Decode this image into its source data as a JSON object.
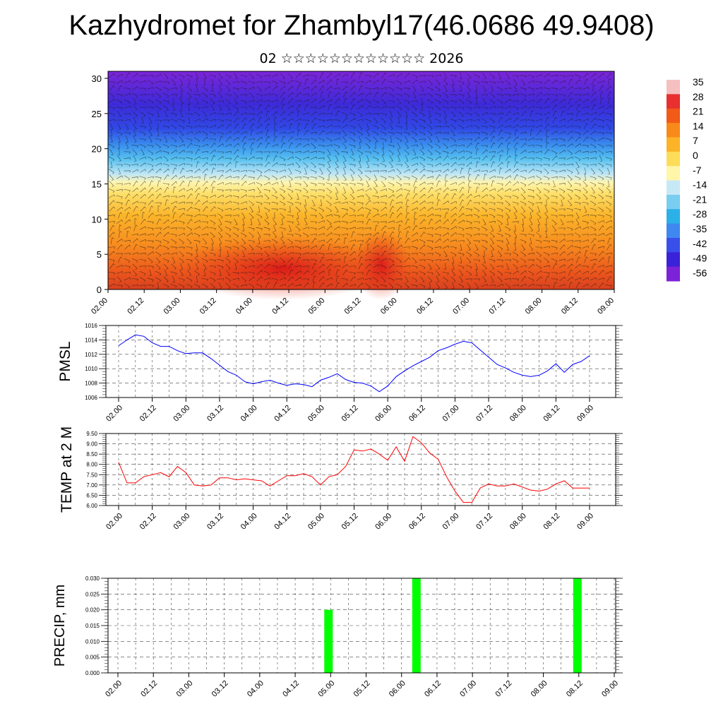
{
  "header": {
    "title": "Kazhydromet for Zhambyl17(46.0686 49.9408)",
    "subtitle": "02 ☆☆☆☆☆☆☆☆☆☆☆☆ 2026"
  },
  "chart_data": [
    {
      "name": "cross-section",
      "type": "heatmap",
      "title": "",
      "x_tick_labels": [
        "02.00",
        "02.12",
        "03.00",
        "03.12",
        "04.00",
        "04.12",
        "05.00",
        "05.12",
        "06.00",
        "06.12",
        "07.00",
        "07.12",
        "08.00",
        "08.12",
        "09.00"
      ],
      "y_ticks": [
        0,
        5,
        10,
        15,
        20,
        25,
        30
      ],
      "ylim": [
        0,
        31
      ],
      "colorbar_labels": [
        "35",
        "28",
        "21",
        "14",
        "7",
        "0",
        "-7",
        "-14",
        "-21",
        "-28",
        "-35",
        "-42",
        "-49",
        "-56"
      ],
      "colorbar_colors": [
        "#f6c0c0",
        "#e83030",
        "#f25a18",
        "#f88a1a",
        "#fcb328",
        "#fddc5a",
        "#fff6a8",
        "#c7e9f6",
        "#79cdf0",
        "#2bb0e8",
        "#3f88f0",
        "#3a4fea",
        "#3a22d8",
        "#7c22d8"
      ]
    },
    {
      "name": "pmsl",
      "type": "line",
      "ylabel": "PMSL",
      "color": "#0000ff",
      "ylim": [
        1006,
        1016
      ],
      "y_ticks": [
        "1006",
        "1008",
        "1010",
        "1012",
        "1014",
        "1016"
      ],
      "x_tick_labels": [
        "02.00",
        "02.12",
        "03.00",
        "03.12",
        "04.00",
        "04.12",
        "05.00",
        "05.12",
        "06.00",
        "06.12",
        "07.00",
        "07.12",
        "08.00",
        "08.12",
        "09.00"
      ],
      "values": [
        1013.2,
        1014.0,
        1014.7,
        1014.5,
        1013.6,
        1013.1,
        1013.1,
        1012.5,
        1012.1,
        1012.2,
        1012.2,
        1011.4,
        1010.5,
        1009.6,
        1009.1,
        1008.2,
        1007.9,
        1008.2,
        1008.4,
        1008.0,
        1007.7,
        1007.9,
        1007.8,
        1007.5,
        1008.4,
        1008.8,
        1009.3,
        1008.5,
        1008.1,
        1008.0,
        1007.6,
        1006.8,
        1007.6,
        1008.9,
        1009.7,
        1010.4,
        1011.0,
        1011.6,
        1012.5,
        1012.9,
        1013.4,
        1013.8,
        1013.6,
        1012.6,
        1011.6,
        1010.6,
        1010.1,
        1009.5,
        1009.1,
        1008.9,
        1009.1,
        1009.7,
        1010.7,
        1009.5,
        1010.6,
        1011.0,
        1011.8
      ]
    },
    {
      "name": "temp2m",
      "type": "line",
      "ylabel": "TEMP at 2 M",
      "color": "#ff0000",
      "ylim": [
        6.0,
        9.5
      ],
      "y_ticks": [
        "6.00",
        "6.50",
        "7.00",
        "7.50",
        "8.00",
        "8.50",
        "9.00",
        "9.50"
      ],
      "x_tick_labels": [
        "02.00",
        "02.12",
        "03.00",
        "03.12",
        "04.00",
        "04.12",
        "05.00",
        "05.12",
        "06.00",
        "06.12",
        "07.00",
        "07.12",
        "08.00",
        "08.12",
        "09.00"
      ],
      "values": [
        8.1,
        7.1,
        7.1,
        7.4,
        7.5,
        7.6,
        7.4,
        7.9,
        7.6,
        7.0,
        6.95,
        7.0,
        7.35,
        7.35,
        7.25,
        7.3,
        7.25,
        7.2,
        6.95,
        7.2,
        7.45,
        7.45,
        7.55,
        7.4,
        7.0,
        7.4,
        7.5,
        7.9,
        8.7,
        8.65,
        8.75,
        8.5,
        8.2,
        8.85,
        8.15,
        9.35,
        9.05,
        8.55,
        8.25,
        7.4,
        6.7,
        6.15,
        6.15,
        6.85,
        7.05,
        6.95,
        6.95,
        7.05,
        6.9,
        6.75,
        6.7,
        6.8,
        7.05,
        7.2,
        6.85,
        6.85,
        6.85
      ]
    },
    {
      "name": "precip",
      "type": "bar",
      "ylabel": "PRECIP, mm",
      "color": "#00ff00",
      "ylim": [
        0,
        0.03
      ],
      "y_ticks": [
        "0.000",
        "0.005",
        "0.010",
        "0.015",
        "0.020",
        "0.025",
        "0.030"
      ],
      "x_tick_labels": [
        "02.00",
        "02.12",
        "03.00",
        "03.12",
        "04.00",
        "04.12",
        "05.00",
        "05.12",
        "06.00",
        "06.12",
        "07.00",
        "07.12",
        "08.00",
        "08.12",
        "09.00"
      ],
      "bars": [
        {
          "position": 5.94,
          "value": 0.02
        },
        {
          "position": 8.42,
          "value": 0.03
        },
        {
          "position": 12.96,
          "value": 0.03
        }
      ]
    }
  ]
}
